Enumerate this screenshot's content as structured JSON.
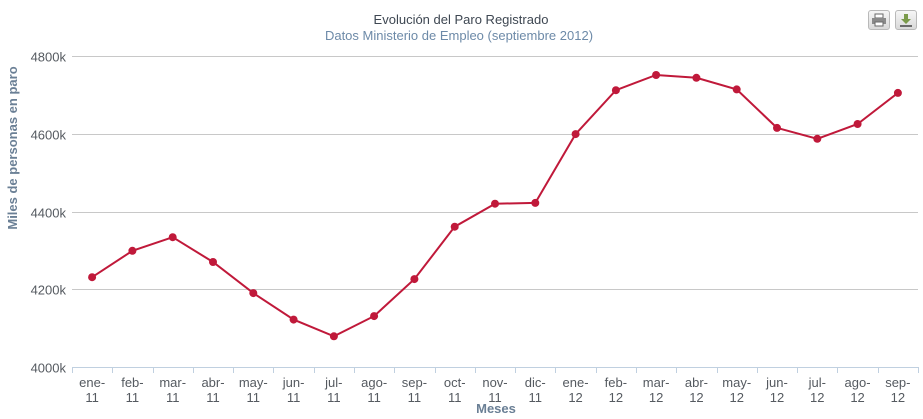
{
  "chart_data": {
    "type": "line",
    "title": "Evolución del Paro Registrado",
    "subtitle": "Datos Ministerio de Empleo (septiembre 2012)",
    "xlabel": "Meses",
    "ylabel": "Miles de personas en paro",
    "ylim": [
      4000,
      4800
    ],
    "yticks": [
      {
        "value": 4000,
        "label": "4000k"
      },
      {
        "value": 4200,
        "label": "4200k"
      },
      {
        "value": 4400,
        "label": "4400k"
      },
      {
        "value": 4600,
        "label": "4600k"
      },
      {
        "value": 4800,
        "label": "4800k"
      }
    ],
    "categories": [
      [
        "ene-",
        "11"
      ],
      [
        "feb-",
        "11"
      ],
      [
        "mar-",
        "11"
      ],
      [
        "abr-",
        "11"
      ],
      [
        "may-",
        "11"
      ],
      [
        "jun-",
        "11"
      ],
      [
        "jul-",
        "11"
      ],
      [
        "ago-",
        "11"
      ],
      [
        "sep-",
        "11"
      ],
      [
        "oct-",
        "11"
      ],
      [
        "nov-",
        "11"
      ],
      [
        "dic-",
        "11"
      ],
      [
        "ene-",
        "12"
      ],
      [
        "feb-",
        "12"
      ],
      [
        "mar-",
        "12"
      ],
      [
        "abr-",
        "12"
      ],
      [
        "may-",
        "12"
      ],
      [
        "jun-",
        "12"
      ],
      [
        "jul-",
        "12"
      ],
      [
        "ago-",
        "12"
      ],
      [
        "sep-",
        "12"
      ]
    ],
    "series": [
      {
        "values": [
          4231,
          4299,
          4334,
          4270,
          4190,
          4122,
          4079,
          4131,
          4226,
          4361,
          4420,
          4422,
          4599,
          4712,
          4751,
          4744,
          4714,
          4615,
          4587,
          4625,
          4705
        ],
        "color": "#c0193a"
      }
    ],
    "grid": true,
    "legend": "none"
  },
  "toolbar": {
    "print_icon": "printer-icon",
    "export_icon": "download-icon"
  }
}
